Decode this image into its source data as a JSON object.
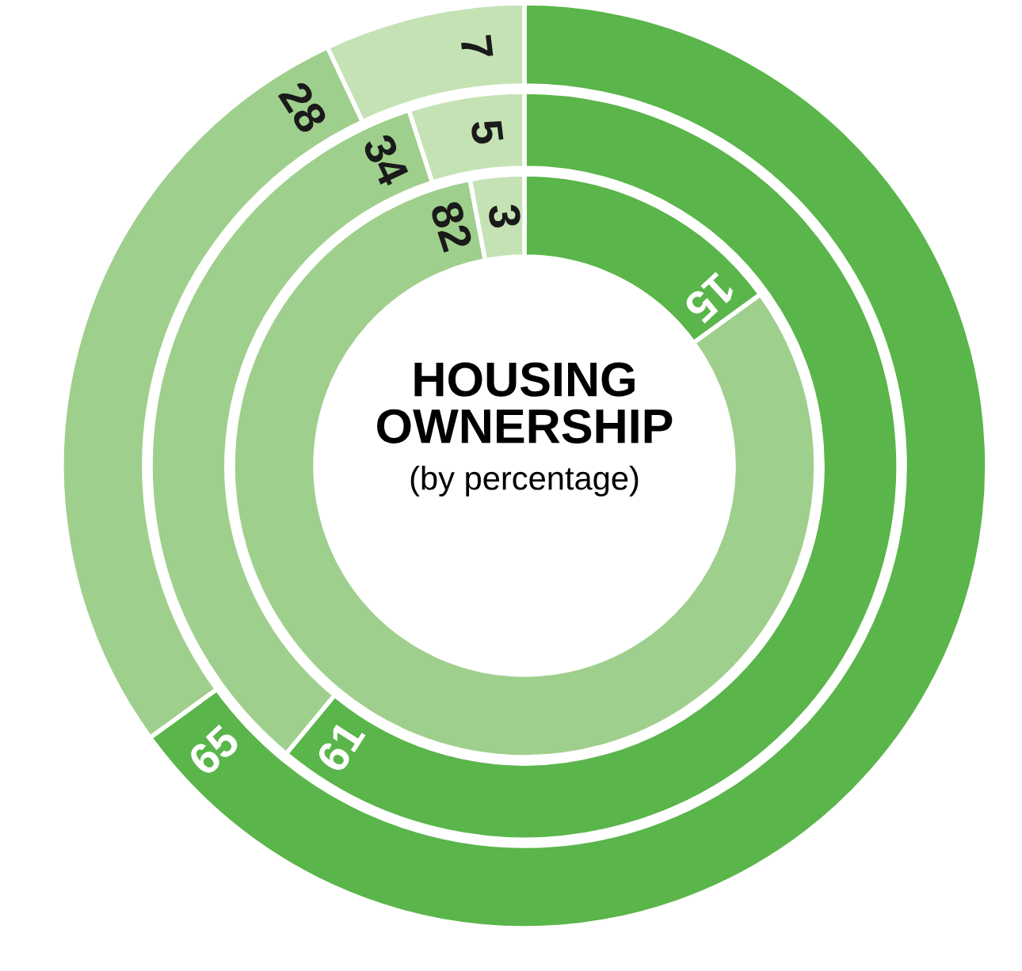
{
  "chart_data": {
    "type": "donut",
    "title": "HOUSING OWNERSHIP",
    "subtitle": "(by percentage)",
    "categories": [
      null,
      null,
      null
    ],
    "series": [
      {
        "values": [
          65,
          28,
          7
        ],
        "colors": [
          "#5ab54a",
          "#9fcf8c",
          "#c5e2b5"
        ]
      },
      {
        "values": [
          61,
          34,
          5
        ],
        "colors": [
          "#5ab54a",
          "#9fcf8c",
          "#c5e2b5"
        ]
      },
      {
        "values": [
          15,
          82,
          3
        ],
        "colors": [
          "#5ab54a",
          "#9fcf8c",
          "#c5e2b5"
        ]
      }
    ],
    "data_labels": true
  }
}
